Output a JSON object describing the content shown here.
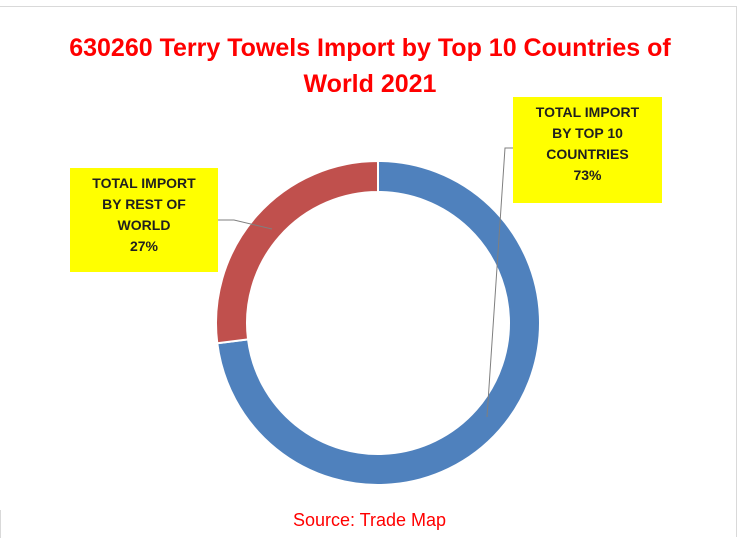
{
  "chart_data": {
    "type": "pie",
    "title": "630260 Terry Towels Import by Top 10 Countries of World 2021",
    "slices": [
      {
        "label": "TOTAL IMPORT BY TOP 10 COUNTRIES",
        "value": 73,
        "color": "#4f81bd"
      },
      {
        "label": "TOTAL IMPORT BY REST OF WORLD",
        "value": 27,
        "color": "#c0504d"
      }
    ],
    "data_labels": [
      {
        "text": "TOTAL IMPORT\nBY TOP 10\nCOUNTRIES\n73%"
      },
      {
        "text": "TOTAL IMPORT\nBY REST OF\nWORLD\n27%"
      }
    ],
    "source": "Source: Trade Map"
  },
  "colors": {
    "title": "#ff0000",
    "label_background": "#ffff00",
    "leader_line": "#7f7f7f"
  }
}
